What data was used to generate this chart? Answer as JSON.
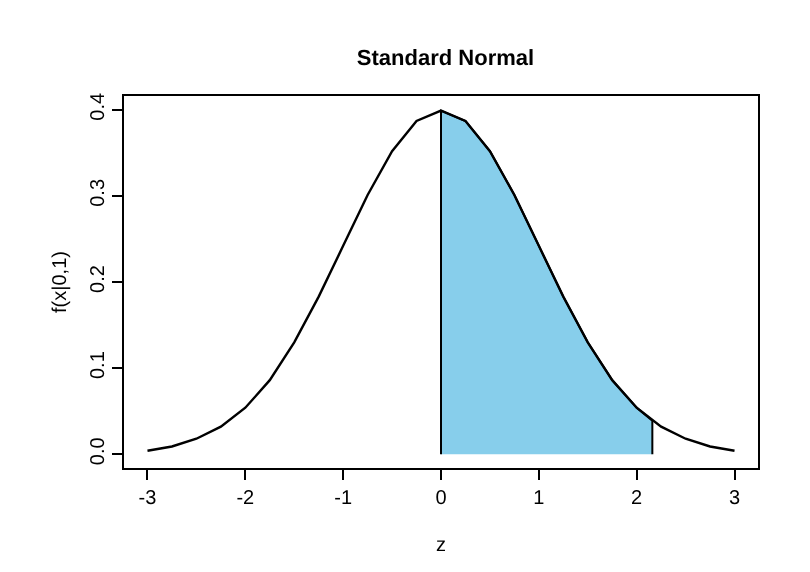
{
  "chart_data": {
    "type": "line",
    "title": "Standard Normal",
    "xlabel": "z",
    "ylabel": "f(x|0,1)",
    "xlim": [
      -3.24,
      3.24
    ],
    "ylim": [
      -0.016,
      0.416
    ],
    "xticks": [
      -3,
      -2,
      -1,
      0,
      1,
      2,
      3
    ],
    "yticks": [
      {
        "value": 0,
        "label": "0.0"
      },
      0.1,
      0.2,
      0.3,
      0.4
    ],
    "grid": false,
    "legend": false,
    "marker": "none",
    "line_style": "solid",
    "series": [
      {
        "color": "#000000",
        "x": [
          -3,
          -2.75,
          -2.5,
          -2.25,
          -2,
          -1.75,
          -1.5,
          -1.25,
          -1,
          -0.75,
          -0.5,
          -0.25,
          0,
          0.25,
          0.5,
          0.75,
          1,
          1.25,
          1.5,
          1.75,
          2,
          2.25,
          2.5,
          2.75,
          3
        ],
        "values": [
          0.004,
          0.009,
          0.018,
          0.032,
          0.054,
          0.086,
          0.13,
          0.183,
          0.242,
          0.301,
          0.352,
          0.387,
          0.399,
          0.387,
          0.352,
          0.301,
          0.242,
          0.183,
          0.13,
          0.086,
          0.054,
          0.032,
          0.018,
          0.009,
          0.004
        ]
      },
      {
        "type": "area",
        "color": "#87ceeb",
        "x": [
          0,
          0,
          0.25,
          0.5,
          0.75,
          1,
          1.25,
          1.5,
          1.75,
          2,
          2.16,
          2.16
        ],
        "values": [
          0,
          0.399,
          0.387,
          0.352,
          0.301,
          0.242,
          0.183,
          0.13,
          0.086,
          0.054,
          0.039,
          0
        ]
      }
    ]
  }
}
